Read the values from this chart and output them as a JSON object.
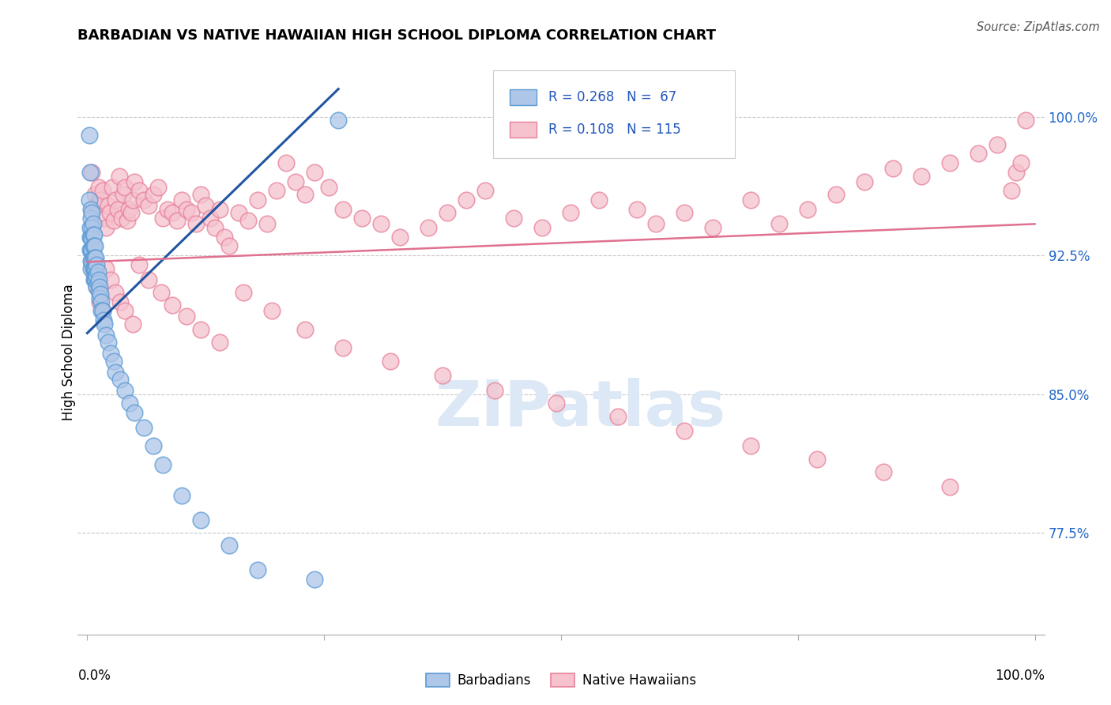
{
  "title": "BARBADIAN VS NATIVE HAWAIIAN HIGH SCHOOL DIPLOMA CORRELATION CHART",
  "source": "Source: ZipAtlas.com",
  "ylabel": "High School Diploma",
  "ylim": [
    0.72,
    1.025
  ],
  "xlim": [
    -0.01,
    1.01
  ],
  "yticks": [
    0.775,
    0.85,
    0.925,
    1.0
  ],
  "ytick_labels": [
    "77.5%",
    "85.0%",
    "92.5%",
    "100.0%"
  ],
  "legend_r1": "R = 0.268",
  "legend_n1": "N =  67",
  "legend_r2": "R = 0.108",
  "legend_n2": "N = 115",
  "barbadian_color": "#aec6e8",
  "barbadian_edge": "#5b9bd5",
  "native_hawaiian_color": "#f5c2ce",
  "native_hawaiian_edge": "#e8819a",
  "line_blue": "#2255a0",
  "line_pink": "#e07090",
  "watermark_color": "#dce8f5",
  "blue_line_x0": 0.0,
  "blue_line_y0": 0.883,
  "blue_line_x1": 0.265,
  "blue_line_y1": 1.015,
  "pink_line_x0": 0.0,
  "pink_line_y0": 0.9215,
  "pink_line_x1": 1.0,
  "pink_line_y1": 0.942,
  "barb_x": [
    0.002,
    0.002,
    0.003,
    0.003,
    0.003,
    0.003,
    0.004,
    0.004,
    0.004,
    0.004,
    0.004,
    0.004,
    0.005,
    0.005,
    0.005,
    0.005,
    0.005,
    0.006,
    0.006,
    0.006,
    0.006,
    0.006,
    0.007,
    0.007,
    0.007,
    0.007,
    0.007,
    0.008,
    0.008,
    0.008,
    0.008,
    0.009,
    0.009,
    0.009,
    0.01,
    0.01,
    0.01,
    0.011,
    0.011,
    0.012,
    0.012,
    0.013,
    0.013,
    0.014,
    0.015,
    0.015,
    0.016,
    0.017,
    0.018,
    0.02,
    0.022,
    0.025,
    0.028,
    0.03,
    0.035,
    0.04,
    0.045,
    0.05,
    0.06,
    0.07,
    0.08,
    0.1,
    0.12,
    0.15,
    0.18,
    0.24,
    0.265
  ],
  "barb_y": [
    0.99,
    0.955,
    0.97,
    0.94,
    0.935,
    0.928,
    0.95,
    0.945,
    0.935,
    0.928,
    0.922,
    0.918,
    0.948,
    0.94,
    0.934,
    0.928,
    0.922,
    0.942,
    0.936,
    0.93,
    0.924,
    0.918,
    0.936,
    0.93,
    0.924,
    0.918,
    0.912,
    0.93,
    0.924,
    0.918,
    0.912,
    0.924,
    0.918,
    0.912,
    0.92,
    0.914,
    0.908,
    0.916,
    0.91,
    0.912,
    0.906,
    0.908,
    0.902,
    0.904,
    0.9,
    0.895,
    0.895,
    0.89,
    0.888,
    0.882,
    0.878,
    0.872,
    0.868,
    0.862,
    0.858,
    0.852,
    0.845,
    0.84,
    0.832,
    0.822,
    0.812,
    0.795,
    0.782,
    0.768,
    0.755,
    0.75,
    0.998
  ],
  "native_x": [
    0.005,
    0.008,
    0.01,
    0.012,
    0.014,
    0.016,
    0.018,
    0.02,
    0.022,
    0.024,
    0.026,
    0.028,
    0.03,
    0.032,
    0.034,
    0.036,
    0.038,
    0.04,
    0.042,
    0.044,
    0.046,
    0.048,
    0.05,
    0.055,
    0.06,
    0.065,
    0.07,
    0.075,
    0.08,
    0.085,
    0.09,
    0.095,
    0.1,
    0.105,
    0.11,
    0.115,
    0.12,
    0.125,
    0.13,
    0.135,
    0.14,
    0.145,
    0.15,
    0.16,
    0.17,
    0.18,
    0.19,
    0.2,
    0.21,
    0.22,
    0.23,
    0.24,
    0.255,
    0.27,
    0.29,
    0.31,
    0.33,
    0.36,
    0.38,
    0.4,
    0.42,
    0.45,
    0.48,
    0.51,
    0.54,
    0.58,
    0.6,
    0.63,
    0.66,
    0.7,
    0.73,
    0.76,
    0.79,
    0.82,
    0.85,
    0.88,
    0.91,
    0.94,
    0.96,
    0.975,
    0.98,
    0.985,
    0.99,
    0.005,
    0.007,
    0.01,
    0.013,
    0.016,
    0.02,
    0.025,
    0.03,
    0.035,
    0.04,
    0.048,
    0.055,
    0.065,
    0.078,
    0.09,
    0.105,
    0.12,
    0.14,
    0.165,
    0.195,
    0.23,
    0.27,
    0.32,
    0.375,
    0.43,
    0.495,
    0.56,
    0.63,
    0.7,
    0.77,
    0.84,
    0.91
  ],
  "native_y": [
    0.97,
    0.958,
    0.952,
    0.962,
    0.955,
    0.96,
    0.945,
    0.94,
    0.952,
    0.948,
    0.962,
    0.944,
    0.955,
    0.95,
    0.968,
    0.945,
    0.958,
    0.962,
    0.944,
    0.95,
    0.948,
    0.955,
    0.965,
    0.96,
    0.955,
    0.952,
    0.958,
    0.962,
    0.945,
    0.95,
    0.948,
    0.944,
    0.955,
    0.95,
    0.948,
    0.942,
    0.958,
    0.952,
    0.945,
    0.94,
    0.95,
    0.935,
    0.93,
    0.948,
    0.944,
    0.955,
    0.942,
    0.96,
    0.975,
    0.965,
    0.958,
    0.97,
    0.962,
    0.95,
    0.945,
    0.942,
    0.935,
    0.94,
    0.948,
    0.955,
    0.96,
    0.945,
    0.94,
    0.948,
    0.955,
    0.95,
    0.942,
    0.948,
    0.94,
    0.955,
    0.942,
    0.95,
    0.958,
    0.965,
    0.972,
    0.968,
    0.975,
    0.98,
    0.985,
    0.96,
    0.97,
    0.975,
    0.998,
    0.92,
    0.915,
    0.908,
    0.9,
    0.895,
    0.918,
    0.912,
    0.905,
    0.9,
    0.895,
    0.888,
    0.92,
    0.912,
    0.905,
    0.898,
    0.892,
    0.885,
    0.878,
    0.905,
    0.895,
    0.885,
    0.875,
    0.868,
    0.86,
    0.852,
    0.845,
    0.838,
    0.83,
    0.822,
    0.815,
    0.808,
    0.8
  ]
}
